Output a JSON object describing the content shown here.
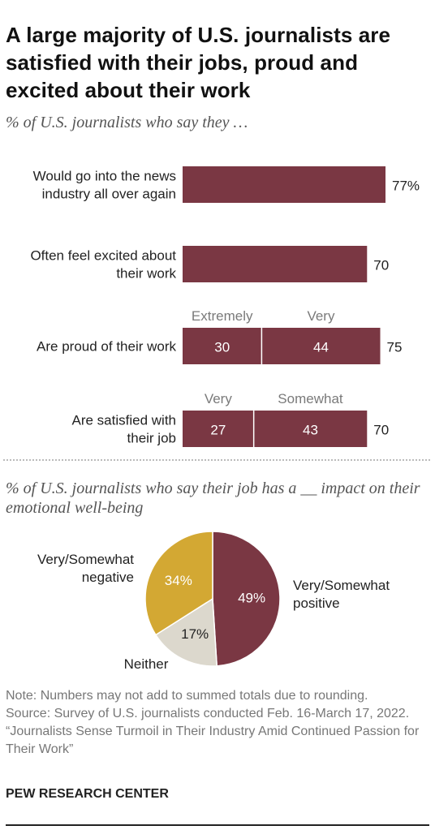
{
  "title": "A large majority of U.S. journalists are satisfied with their jobs, proud and excited about their work",
  "colors": {
    "bar": "#7a3743",
    "positive": "#7a3743",
    "negative": "#d3a833",
    "neither": "#dcd8cd",
    "text": "#222222",
    "segment_label": "#7a7a7a"
  },
  "chart_data": [
    {
      "type": "bar",
      "orientation": "horizontal",
      "subtitle": "% of U.S. journalists who say they …",
      "xlim": [
        0,
        100
      ],
      "rows": [
        {
          "label": "Would go into the news industry all over again",
          "total": 77,
          "total_label": "77%",
          "segments": []
        },
        {
          "label": "Often feel excited about their work",
          "total": 70,
          "total_label": "70",
          "segments": []
        },
        {
          "label": "Are proud of their work",
          "total": 75,
          "total_label": "75",
          "segments": [
            {
              "name": "Extremely",
              "value": 30
            },
            {
              "name": "Very",
              "value": 44
            }
          ]
        },
        {
          "label": "Are satisfied with their job",
          "total": 70,
          "total_label": "70",
          "segments": [
            {
              "name": "Very",
              "value": 27
            },
            {
              "name": "Somewhat",
              "value": 43
            }
          ]
        }
      ]
    },
    {
      "type": "pie",
      "subtitle": "% of U.S. journalists who say their job has a __ impact on their emotional well-being",
      "slices": [
        {
          "name": "Very/Somewhat positive",
          "value": 49,
          "value_label": "49%"
        },
        {
          "name": "Neither",
          "value": 17,
          "value_label": "17%"
        },
        {
          "name": "Very/Somewhat negative",
          "value": 34,
          "value_label": "34%"
        }
      ]
    }
  ],
  "notes": [
    "Note: Numbers may not add to summed totals due to rounding.",
    "Source: Survey of U.S. journalists conducted Feb. 16-March 17, 2022.",
    "“Journalists Sense Turmoil in Their Industry Amid Continued Passion for Their Work”"
  ],
  "brand": "PEW RESEARCH CENTER"
}
